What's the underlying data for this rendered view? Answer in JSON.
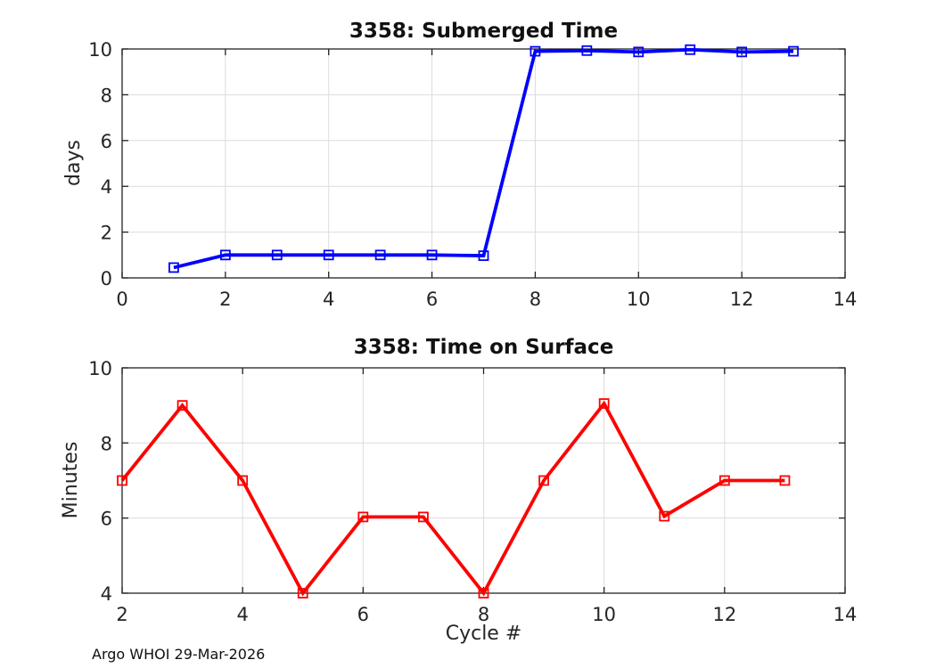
{
  "figure": {
    "background": "#ffffff",
    "footer_text": "Argo WHOI 29-Mar-2026"
  },
  "chart_data": [
    {
      "type": "line",
      "title": "3358: Submerged Time",
      "xlabel": "",
      "ylabel": "days",
      "x": [
        1,
        2,
        3,
        4,
        5,
        6,
        7,
        8,
        9,
        10,
        11,
        12,
        13
      ],
      "series": [
        {
          "name": "submerged-time-days",
          "color": "#0000ff",
          "marker": "open-square",
          "values": [
            0.45,
            1,
            1,
            1,
            1,
            1,
            0.97,
            9.9,
            9.93,
            9.87,
            9.97,
            9.87,
            9.9
          ]
        }
      ],
      "xlim": [
        0,
        14
      ],
      "ylim": [
        0,
        10
      ],
      "xticks": [
        0,
        2,
        4,
        6,
        8,
        10,
        12,
        14
      ],
      "yticks": [
        0,
        2,
        4,
        6,
        8,
        10
      ],
      "grid": true,
      "legend": "none"
    },
    {
      "type": "line",
      "title": "3358: Time on Surface",
      "xlabel": "Cycle #",
      "ylabel": "Minutes",
      "x": [
        2,
        3,
        4,
        5,
        6,
        7,
        8,
        9,
        10,
        11,
        12,
        13
      ],
      "series": [
        {
          "name": "time-on-surface-minutes",
          "color": "#ff0000",
          "marker": "open-square",
          "values": [
            7,
            9,
            7,
            4,
            6.03,
            6.03,
            4,
            7,
            9.05,
            6.05,
            7,
            7
          ]
        }
      ],
      "xlim": [
        2,
        14
      ],
      "ylim": [
        4,
        10
      ],
      "xticks": [
        2,
        4,
        6,
        8,
        10,
        12,
        14
      ],
      "yticks": [
        4,
        6,
        8,
        10
      ],
      "grid": true,
      "legend": "none"
    }
  ]
}
